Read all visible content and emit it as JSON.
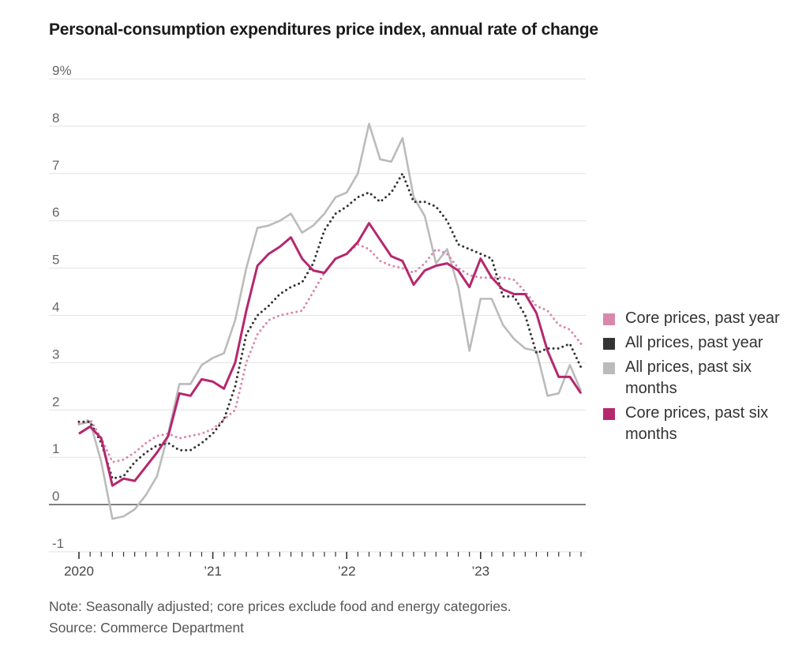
{
  "title": "Personal-consumption expenditures price index, annual rate of change",
  "note": "Note: Seasonally adjusted; core prices exclude food and energy categories.",
  "source": "Source: Commerce Department",
  "legend": [
    {
      "label": "Core prices, past year",
      "color": "#d988ad"
    },
    {
      "label": "All prices, past year",
      "color": "#333333"
    },
    {
      "label": "All prices, past six months",
      "color": "#bbbbbb"
    },
    {
      "label": "Core prices, past six months",
      "color": "#b5286e"
    }
  ],
  "chart_data": {
    "type": "line",
    "title": "Personal-consumption expenditures price index, annual rate of change",
    "ylim": [
      -1,
      9
    ],
    "y_ticks": [
      {
        "value": 9,
        "label": "9%"
      },
      {
        "value": 8,
        "label": "8"
      },
      {
        "value": 7,
        "label": "7"
      },
      {
        "value": 6,
        "label": "6"
      },
      {
        "value": 5,
        "label": "5"
      },
      {
        "value": 4,
        "label": "4"
      },
      {
        "value": 3,
        "label": "3"
      },
      {
        "value": 2,
        "label": "2"
      },
      {
        "value": 1,
        "label": "1"
      },
      {
        "value": 0,
        "label": "0"
      },
      {
        "value": -1,
        "label": "-1"
      }
    ],
    "x_ticks": [
      {
        "value": "2020-01",
        "label": "2020"
      },
      {
        "value": "2021-01",
        "label": "’21"
      },
      {
        "value": "2022-01",
        "label": "’22"
      },
      {
        "value": "2023-01",
        "label": "’23"
      }
    ],
    "x": [
      "2020-01",
      "2020-02",
      "2020-03",
      "2020-04",
      "2020-05",
      "2020-06",
      "2020-07",
      "2020-08",
      "2020-09",
      "2020-10",
      "2020-11",
      "2020-12",
      "2021-01",
      "2021-02",
      "2021-03",
      "2021-04",
      "2021-05",
      "2021-06",
      "2021-07",
      "2021-08",
      "2021-09",
      "2021-10",
      "2021-11",
      "2021-12",
      "2022-01",
      "2022-02",
      "2022-03",
      "2022-04",
      "2022-05",
      "2022-06",
      "2022-07",
      "2022-08",
      "2022-09",
      "2022-10",
      "2022-11",
      "2022-12",
      "2023-01",
      "2023-02",
      "2023-03",
      "2023-04",
      "2023-05",
      "2023-06",
      "2023-07",
      "2023-08",
      "2023-09",
      "2023-10"
    ],
    "grid": true,
    "zero_line": true,
    "series": [
      {
        "name": "Core prices, past year",
        "color": "#d988ad",
        "style": "dotted",
        "values": [
          1.7,
          1.8,
          1.4,
          0.9,
          0.95,
          1.1,
          1.3,
          1.45,
          1.5,
          1.4,
          1.45,
          1.5,
          1.6,
          1.8,
          2.0,
          3.0,
          3.6,
          3.9,
          4.0,
          4.05,
          4.1,
          4.5,
          4.9,
          5.2,
          5.3,
          5.5,
          5.4,
          5.15,
          5.05,
          5.0,
          4.9,
          5.1,
          5.4,
          5.3,
          5.0,
          4.85,
          4.8,
          4.8,
          4.8,
          4.75,
          4.5,
          4.2,
          4.1,
          3.8,
          3.7,
          3.4
        ]
      },
      {
        "name": "All prices, past year",
        "color": "#333333",
        "style": "dotted",
        "values": [
          1.75,
          1.75,
          1.3,
          0.55,
          0.6,
          0.9,
          1.1,
          1.25,
          1.3,
          1.15,
          1.15,
          1.3,
          1.5,
          1.8,
          2.5,
          3.6,
          4.0,
          4.2,
          4.45,
          4.6,
          4.7,
          5.1,
          5.8,
          6.15,
          6.3,
          6.5,
          6.6,
          6.4,
          6.6,
          7.0,
          6.4,
          6.4,
          6.3,
          6.0,
          5.5,
          5.4,
          5.3,
          5.2,
          4.4,
          4.4,
          4.0,
          3.2,
          3.3,
          3.3,
          3.4,
          2.9
        ]
      },
      {
        "name": "All prices, past six months",
        "color": "#bbbbbb",
        "style": "solid",
        "values": [
          1.7,
          1.75,
          0.9,
          -0.3,
          -0.25,
          -0.1,
          0.2,
          0.6,
          1.5,
          2.55,
          2.55,
          2.95,
          3.1,
          3.2,
          3.9,
          5.0,
          5.85,
          5.9,
          6.0,
          6.15,
          5.75,
          5.9,
          6.15,
          6.5,
          6.6,
          7.0,
          8.05,
          7.3,
          7.25,
          7.75,
          6.5,
          6.1,
          5.1,
          5.4,
          4.6,
          3.25,
          4.35,
          4.35,
          3.8,
          3.5,
          3.3,
          3.25,
          2.3,
          2.35,
          2.95,
          2.4
        ]
      },
      {
        "name": "Core prices, past six months",
        "color": "#b5286e",
        "style": "solid",
        "values": [
          1.5,
          1.65,
          1.4,
          0.4,
          0.55,
          0.5,
          0.8,
          1.1,
          1.45,
          2.35,
          2.3,
          2.65,
          2.6,
          2.45,
          3.0,
          4.1,
          5.05,
          5.3,
          5.45,
          5.65,
          5.2,
          4.95,
          4.9,
          5.2,
          5.3,
          5.55,
          5.95,
          5.6,
          5.25,
          5.15,
          4.65,
          4.95,
          5.05,
          5.1,
          4.95,
          4.6,
          5.2,
          4.8,
          4.55,
          4.45,
          4.45,
          4.05,
          3.25,
          2.7,
          2.7,
          2.35
        ]
      }
    ]
  }
}
